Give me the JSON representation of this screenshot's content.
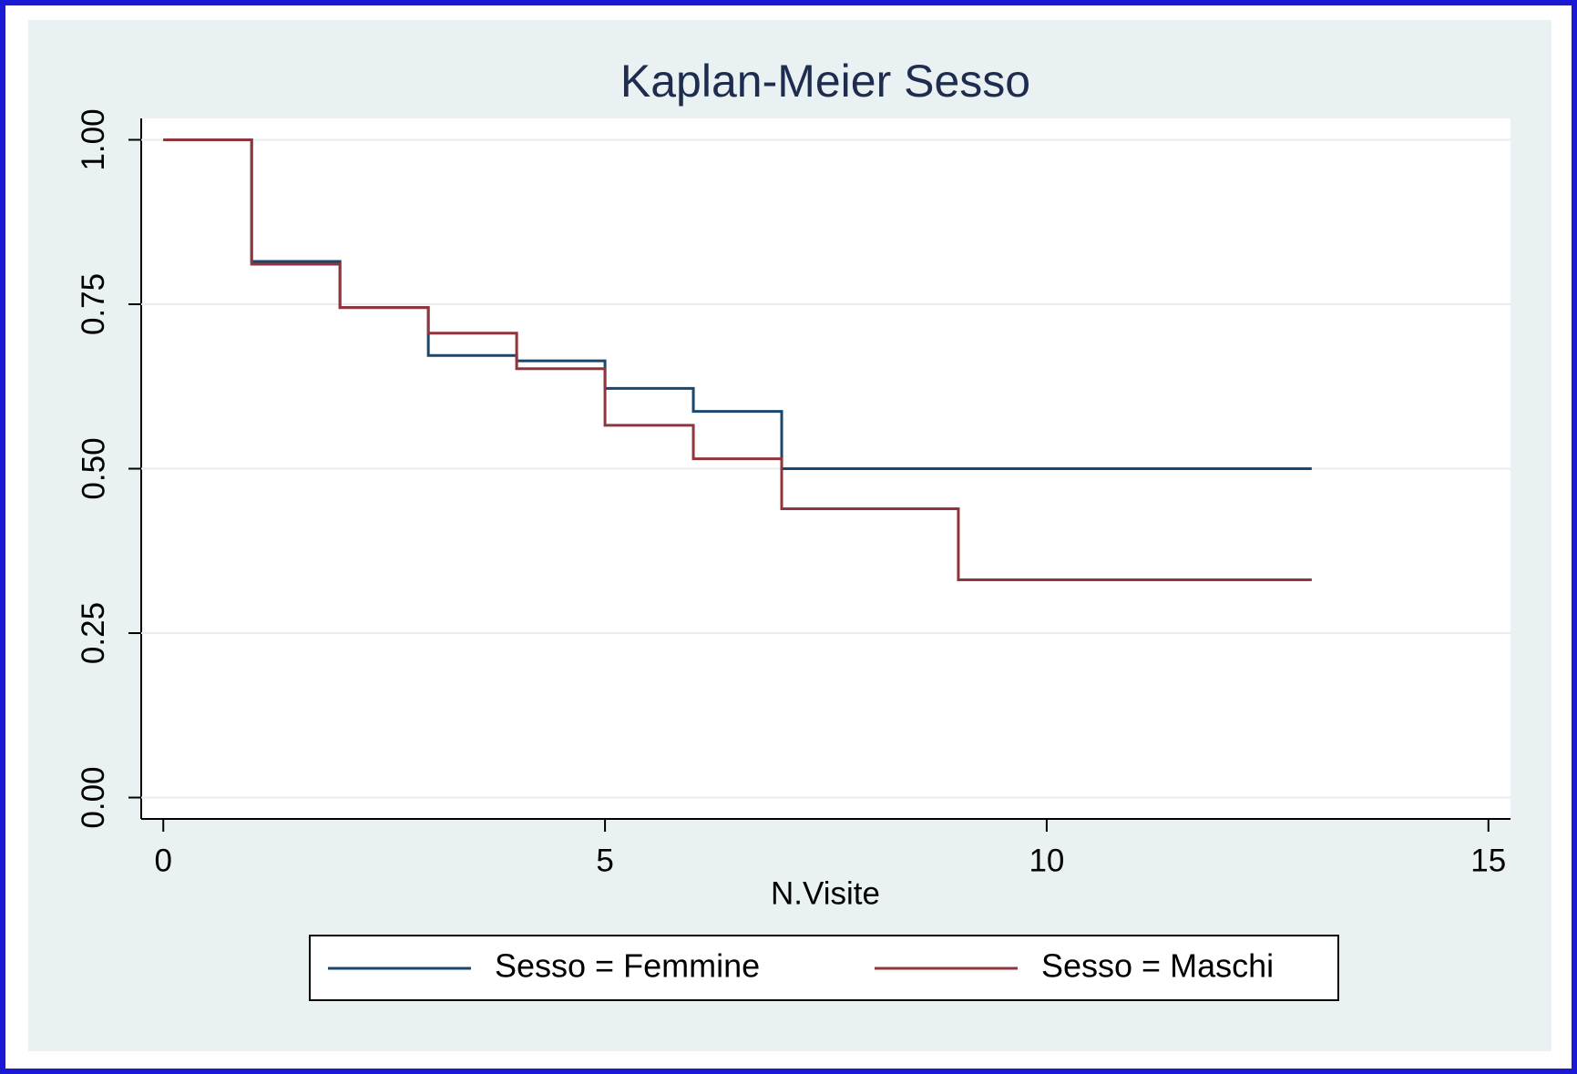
{
  "chart_data": {
    "type": "line",
    "step": "post",
    "title": "Kaplan-Meier Sesso",
    "x_label": "N.Visite",
    "xlim": [
      -0.25,
      15.25
    ],
    "xticks": [
      0,
      5,
      10,
      15
    ],
    "ylim": [
      -0.0325,
      1.0325
    ],
    "yticks": [
      {
        "value": 0,
        "label": "0.00"
      },
      {
        "value": 0.25,
        "label": "0.25"
      },
      {
        "value": 0.5,
        "label": "0.50"
      },
      {
        "value": 0.75,
        "label": "0.75"
      },
      {
        "value": 1,
        "label": "1.00"
      }
    ],
    "grid": true,
    "legend": "bottom",
    "series": [
      {
        "name": "Sesso = Femmine",
        "color": "#1a476f",
        "x": [
          0,
          1,
          2,
          3,
          4,
          5,
          6,
          7,
          13
        ],
        "values": [
          1.0,
          0.815,
          0.745,
          0.672,
          0.664,
          0.622,
          0.587,
          0.5,
          0.5
        ]
      },
      {
        "name": "Sesso = Maschi",
        "color": "#90353b",
        "x": [
          0,
          1,
          2,
          3,
          4,
          5,
          6,
          7,
          9,
          13
        ],
        "values": [
          1.0,
          0.811,
          0.745,
          0.706,
          0.652,
          0.566,
          0.515,
          0.439,
          0.331,
          0.331
        ]
      }
    ]
  }
}
